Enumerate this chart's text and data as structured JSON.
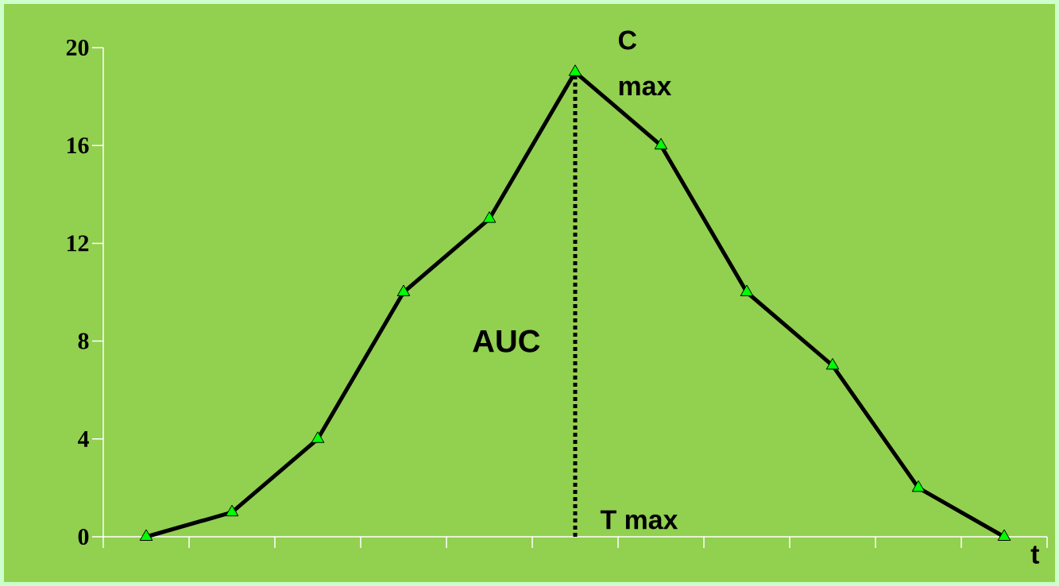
{
  "chart_data": {
    "type": "line",
    "categories": [
      null,
      null,
      null,
      null,
      null,
      null,
      null,
      null,
      null,
      null,
      null
    ],
    "series": [
      {
        "color": "#000000",
        "values": [
          0,
          1,
          4,
          10,
          13,
          19,
          16,
          10,
          7,
          2,
          0
        ]
      }
    ],
    "ylim": [
      0,
      20
    ],
    "yticks": [
      0,
      4,
      8,
      12,
      16,
      20
    ],
    "xlabel": "t",
    "tick_labels": "y",
    "marker": "triangle",
    "line_style": "solid",
    "grid": false,
    "annotations": [
      "C max",
      "AUC",
      "T max"
    ]
  }
}
